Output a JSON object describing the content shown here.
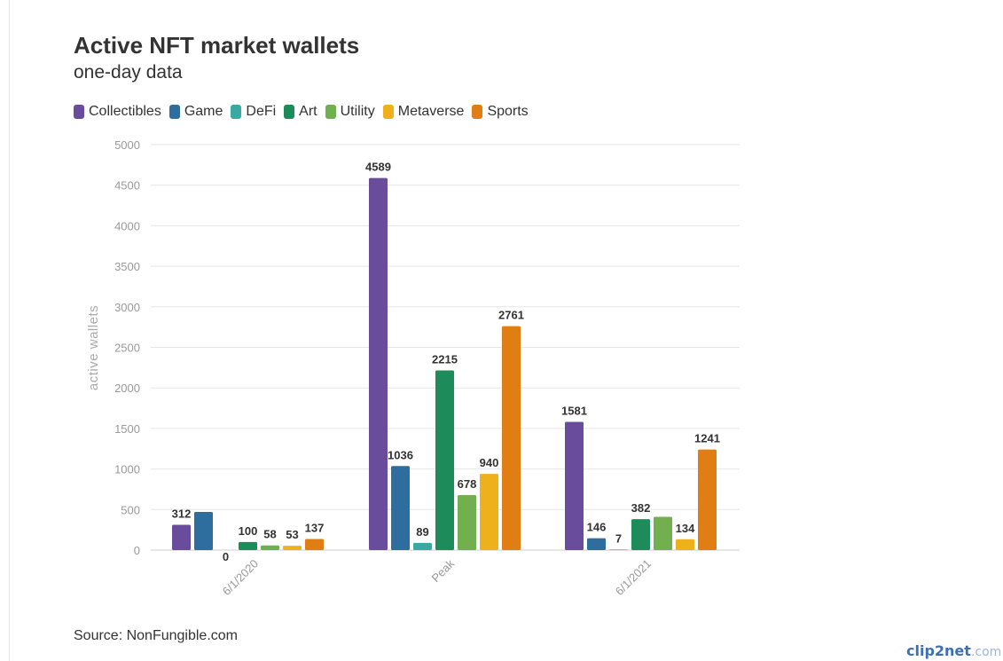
{
  "title": "Active NFT market wallets",
  "subtitle": "one-day data",
  "source": "Source: NonFungible.com",
  "watermark": {
    "brand": "clip2net",
    "domain": ".com"
  },
  "chart_data": {
    "type": "bar",
    "title": "Active NFT market wallets",
    "subtitle": "one-day data",
    "xlabel": "",
    "ylabel": "active wallets",
    "ylim": [
      0,
      5000
    ],
    "yticks": [
      0,
      500,
      1000,
      1500,
      2000,
      2500,
      3000,
      3500,
      4000,
      4500,
      5000
    ],
    "grid": true,
    "legend_position": "top-left",
    "categories": [
      "6/1/2020",
      "Peak",
      "6/1/2021"
    ],
    "series": [
      {
        "name": "Collectibles",
        "color": "#6a4c9c",
        "values": [
          312,
          4589,
          1581
        ],
        "labels": [
          "312",
          "4589",
          "1581"
        ]
      },
      {
        "name": "Game",
        "color": "#2d6e9e",
        "values": [
          470,
          1036,
          146
        ],
        "labels": [
          "",
          "1036",
          "146"
        ]
      },
      {
        "name": "DeFi",
        "color": "#3aa9a3",
        "values": [
          0,
          89,
          7
        ],
        "labels": [
          "0",
          "89",
          "7"
        ]
      },
      {
        "name": "Art",
        "color": "#1e8c5a",
        "values": [
          100,
          2215,
          382
        ],
        "labels": [
          "100",
          "2215",
          "382"
        ]
      },
      {
        "name": "Utility",
        "color": "#72b04f",
        "values": [
          58,
          678,
          410
        ],
        "labels": [
          "58",
          "678",
          ""
        ]
      },
      {
        "name": "Metaverse",
        "color": "#eeb11b",
        "values": [
          53,
          940,
          134
        ],
        "labels": [
          "53",
          "940",
          "134"
        ]
      },
      {
        "name": "Sports",
        "color": "#e07e14",
        "values": [
          137,
          2761,
          1241
        ],
        "labels": [
          "137",
          "2761",
          "1241"
        ]
      }
    ]
  }
}
